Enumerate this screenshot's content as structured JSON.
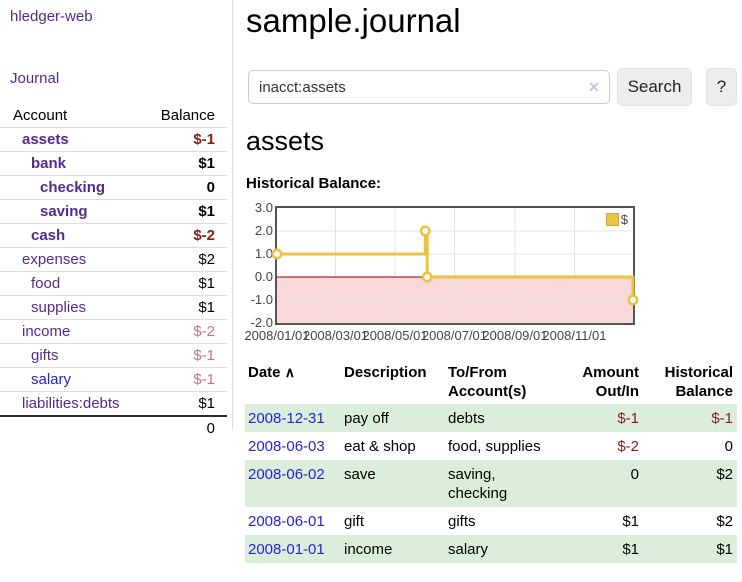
{
  "sidebar": {
    "app_title": "hledger-web",
    "nav": {
      "journal": "Journal"
    },
    "accounts": {
      "headers": {
        "account": "Account",
        "balance": "Balance"
      },
      "rows": [
        {
          "name": "assets",
          "balance": "$-1"
        },
        {
          "name": "bank",
          "balance": "$1"
        },
        {
          "name": "checking",
          "balance": "0"
        },
        {
          "name": "saving",
          "balance": "$1"
        },
        {
          "name": "cash",
          "balance": "$-2"
        },
        {
          "name": "expenses",
          "balance": "$2"
        },
        {
          "name": "food",
          "balance": "$1"
        },
        {
          "name": "supplies",
          "balance": "$1"
        },
        {
          "name": "income",
          "balance": "$-2"
        },
        {
          "name": "gifts",
          "balance": "$-1"
        },
        {
          "name": "salary",
          "balance": "$-1"
        },
        {
          "name": "liabilities:debts",
          "balance": "$1"
        }
      ],
      "total": "0"
    }
  },
  "main": {
    "title": "sample.journal",
    "search": {
      "value": "inacct:assets",
      "clear_icon": "✕",
      "button": "Search",
      "help_button": "?"
    },
    "account_heading": "assets",
    "chart_title": "Historical Balance:"
  },
  "chart_data": {
    "type": "line",
    "title": "Historical Balance:",
    "series": [
      {
        "name": "$",
        "color": "#edc240",
        "points": [
          {
            "x": "2008-01-01",
            "y": 1
          },
          {
            "x": "2008-06-01",
            "y": 2
          },
          {
            "x": "2008-06-03",
            "y": 0
          },
          {
            "x": "2008-12-31",
            "y": -1
          }
        ],
        "style": "step-after"
      }
    ],
    "legend": {
      "label": "$",
      "position": "top-right"
    },
    "xlim": [
      "2008-01-01",
      "2008-12-31"
    ],
    "ylim": [
      -2,
      3
    ],
    "x_ticks": [
      "2008/01/01",
      "2008/03/01",
      "2008/05/01",
      "2008/07/01",
      "2008/09/01",
      "2008/11/01"
    ],
    "x_tick_dates": [
      "2008-01-01",
      "2008-03-01",
      "2008-05-01",
      "2008-07-01",
      "2008-09-01",
      "2008-11-01"
    ],
    "y_ticks": [
      "3.0",
      "2.0",
      "1.0",
      "0.0",
      "-1.0",
      "-2.0"
    ],
    "y_tick_values": [
      3,
      2,
      1,
      0,
      -1,
      -2
    ],
    "grid": true,
    "negative_region_color": "#f8d8d8",
    "zero_line_color": "#8b0000"
  },
  "register": {
    "headers": {
      "date": "Date",
      "sort_icon": "∧",
      "description": "Description",
      "tofrom": "To/From Account(s)",
      "amount": "Amount Out/In",
      "balance": "Historical Balance"
    },
    "rows": [
      {
        "date": "2008-12-31",
        "description": "pay off",
        "accounts": "debts",
        "amount": "$-1",
        "balance": "$-1"
      },
      {
        "date": "2008-06-03",
        "description": "eat & shop",
        "accounts": "food, supplies",
        "amount": "$-2",
        "balance": "0"
      },
      {
        "date": "2008-06-02",
        "description": "save",
        "accounts": "saving, checking",
        "amount": "0",
        "balance": "$2"
      },
      {
        "date": "2008-06-01",
        "description": "gift",
        "accounts": "gifts",
        "amount": "$1",
        "balance": "$2"
      },
      {
        "date": "2008-01-01",
        "description": "income",
        "accounts": "salary",
        "amount": "$1",
        "balance": "$1"
      }
    ]
  }
}
